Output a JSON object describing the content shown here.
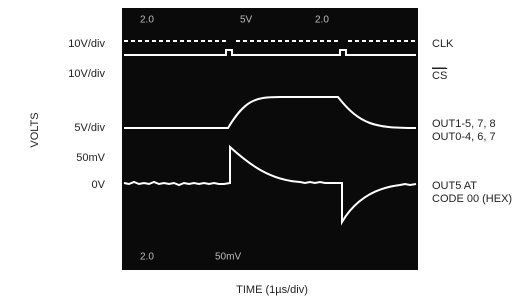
{
  "axis_labels": {
    "y": "VOLTS",
    "x": "TIME (1µs/div)"
  },
  "left_labels": [
    "10V/div",
    "10V/div",
    "5V/div",
    "50mV",
    "0V"
  ],
  "right_labels": [
    "CLK",
    "CS",
    "OUT1-5, 7, 8",
    "OUT0-4, 6, 7",
    "OUT5 AT",
    "CODE 00 (HEX)"
  ],
  "screen_text": {
    "top": [
      "2.0",
      "5V",
      "2.0"
    ],
    "bottom": [
      "2.0",
      "50mV"
    ]
  }
}
